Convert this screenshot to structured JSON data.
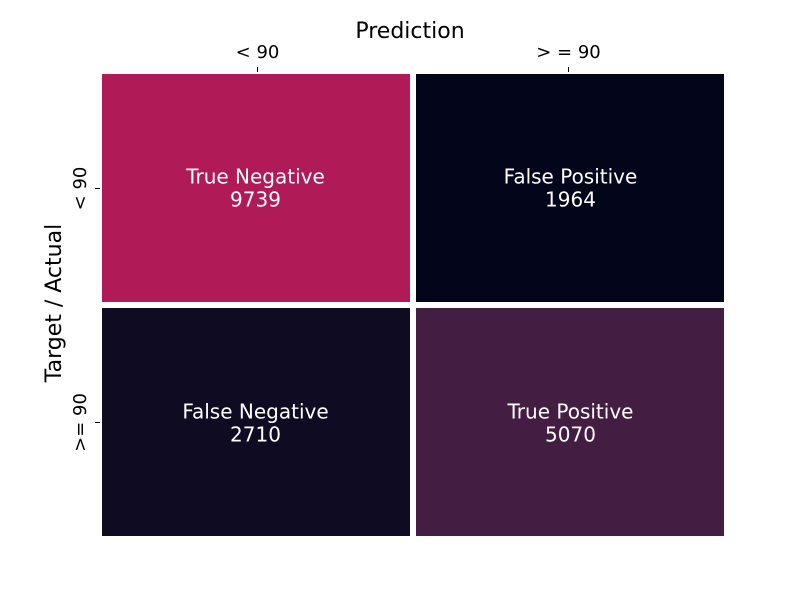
{
  "chart_data": {
    "type": "heatmap",
    "xlabel": "Prediction",
    "ylabel": "Target / Actual",
    "x_categories": [
      "< 90",
      "> = 90"
    ],
    "y_categories": [
      "< 90",
      ">= 90"
    ],
    "cells": [
      [
        {
          "label": "True Negative",
          "value": 9739,
          "color": "#b01a57"
        },
        {
          "label": "False Positive",
          "value": 1964,
          "color": "#03051a"
        }
      ],
      [
        {
          "label": "False Negative",
          "value": 2710,
          "color": "#0f0b22"
        },
        {
          "label": "True Positive",
          "value": 5070,
          "color": "#441d43"
        }
      ]
    ],
    "x_axis_position": "top",
    "colorbar": false,
    "grid": false
  }
}
